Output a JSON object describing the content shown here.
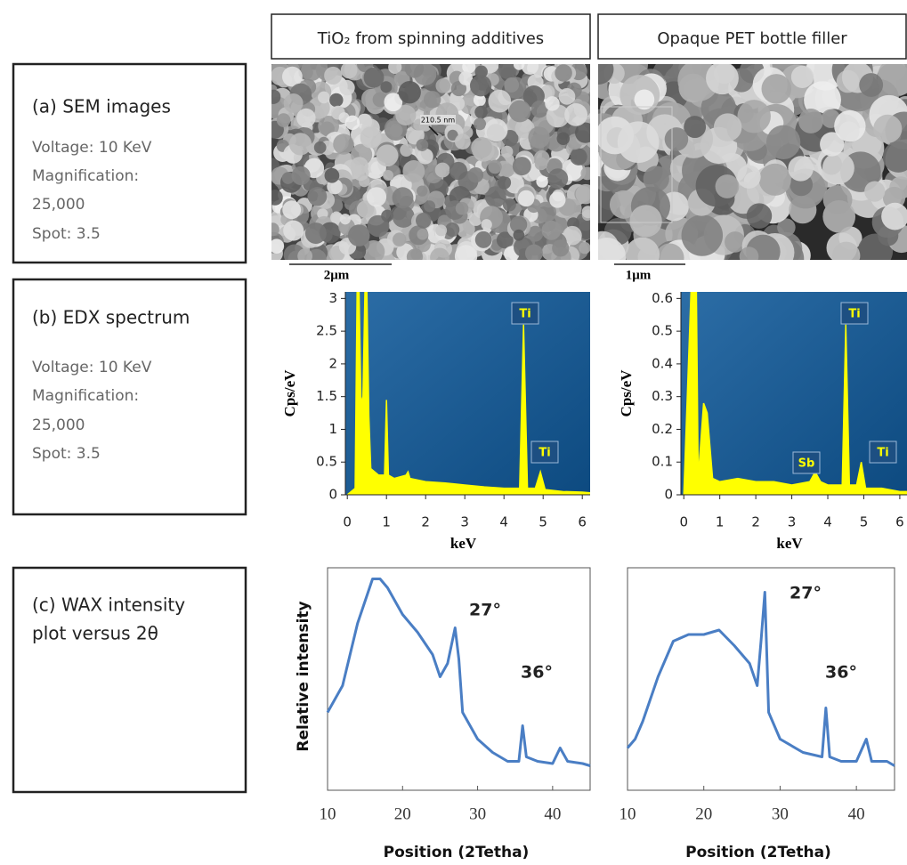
{
  "headers": [
    "TiO₂ from spinning additives",
    "Opaque PET bottle filler"
  ],
  "panels": [
    {
      "title": [
        "(a) SEM images"
      ],
      "details": [
        "Voltage: 10 KeV",
        "Magnification:",
        "25,000",
        "Spot: 3.5"
      ]
    },
    {
      "title": [
        "(b) EDX spectrum"
      ],
      "details": [
        "Voltage: 10 KeV",
        "Magnification:",
        "25,000",
        "Spot: 3.5"
      ]
    },
    {
      "title": [
        "(c) WAX intensity",
        "plot versus 2θ"
      ]
    }
  ],
  "sem": {
    "annotation": "210.5 nm",
    "scale_bars": [
      "2μm",
      "1μm"
    ]
  },
  "edx": [
    {
      "type": "area",
      "xlabel": "keV",
      "ylabel": "Cps/eV",
      "color": "#ffff00",
      "xlim": [
        -0.05,
        6.2
      ],
      "ylim": [
        0,
        3.1
      ],
      "xticks": [
        0,
        1,
        2,
        3,
        4,
        5,
        6
      ],
      "yticks": [
        0,
        0.5,
        1,
        1.5,
        2,
        2.5,
        3
      ],
      "x": [
        0,
        0.2,
        0.25,
        0.3,
        0.35,
        0.4,
        0.45,
        0.5,
        0.55,
        0.6,
        0.8,
        0.95,
        1.0,
        1.05,
        1.2,
        1.5,
        1.55,
        1.6,
        2,
        2.5,
        3,
        3.5,
        4,
        4.4,
        4.5,
        4.6,
        4.8,
        4.93,
        5.05,
        5.5,
        6,
        6.2
      ],
      "values": [
        0,
        0.1,
        3.1,
        3.1,
        1.4,
        1.5,
        3.1,
        3.1,
        1.2,
        0.4,
        0.3,
        0.3,
        1.45,
        0.3,
        0.25,
        0.3,
        0.35,
        0.25,
        0.2,
        0.18,
        0.15,
        0.12,
        0.1,
        0.1,
        2.6,
        0.1,
        0.1,
        0.35,
        0.08,
        0.05,
        0.04,
        0.03
      ],
      "peaks": [
        "Ti",
        "Ti"
      ]
    },
    {
      "type": "area",
      "xlabel": "keV",
      "ylabel": "Cps/eV",
      "color": "#ffff00",
      "xlim": [
        -0.08,
        6.2
      ],
      "ylim": [
        0,
        0.62
      ],
      "xticks": [
        0,
        1,
        2,
        3,
        4,
        5,
        6
      ],
      "yticks": [
        0,
        0.1,
        0.2,
        0.3,
        0.4,
        0.5,
        0.6
      ],
      "x": [
        0,
        0.2,
        0.25,
        0.35,
        0.4,
        0.55,
        0.65,
        0.8,
        1,
        1.5,
        2,
        2.5,
        3,
        3.5,
        3.65,
        3.8,
        4,
        4.4,
        4.5,
        4.6,
        4.8,
        4.93,
        5.05,
        5.5,
        6,
        6.2
      ],
      "values": [
        0,
        0.62,
        0.62,
        0.62,
        0.05,
        0.28,
        0.25,
        0.05,
        0.04,
        0.05,
        0.04,
        0.04,
        0.03,
        0.04,
        0.07,
        0.04,
        0.03,
        0.03,
        0.52,
        0.03,
        0.03,
        0.1,
        0.02,
        0.02,
        0.01,
        0.01
      ],
      "peaks": [
        "Sb",
        "Ti",
        "Ti"
      ]
    }
  ],
  "wax": [
    {
      "type": "line",
      "xlabel": "Position (2Tetha)",
      "ylabel": "Relative intensity",
      "color": "#4a7ec4",
      "xlim": [
        10,
        45
      ],
      "ylim": [
        0,
        100
      ],
      "xticks": [
        10,
        20,
        30,
        40
      ],
      "x": [
        10,
        12,
        14,
        16,
        17,
        18,
        20,
        22,
        24,
        25,
        26,
        27,
        27.5,
        28,
        30,
        32,
        34,
        35.5,
        36,
        36.5,
        38,
        40,
        41,
        42,
        44,
        45
      ],
      "values": [
        35,
        47,
        75,
        95,
        95,
        91,
        79,
        71,
        61,
        51,
        57,
        73,
        59,
        35,
        23,
        17,
        13,
        13,
        29,
        15,
        13,
        12,
        19,
        13,
        12,
        11
      ],
      "annotations": [
        "27°",
        "36°"
      ]
    },
    {
      "type": "line",
      "xlabel": "Position (2Tetha)",
      "color": "#4a7ec4",
      "xlim": [
        10,
        45
      ],
      "ylim": [
        0,
        100
      ],
      "xticks": [
        10,
        20,
        30,
        40
      ],
      "x": [
        10,
        11,
        12,
        14,
        16,
        18,
        20,
        22,
        24,
        26,
        27,
        27.5,
        28,
        28.5,
        30,
        33,
        35.5,
        36,
        36.5,
        38,
        40,
        41.3,
        42,
        44,
        45
      ],
      "values": [
        19,
        23,
        31,
        51,
        67,
        70,
        70,
        72,
        65,
        57,
        47,
        67,
        89,
        35,
        23,
        17,
        15,
        37,
        15,
        13,
        13,
        23,
        13,
        13,
        11
      ],
      "annotations": [
        "27°",
        "36°"
      ]
    }
  ]
}
